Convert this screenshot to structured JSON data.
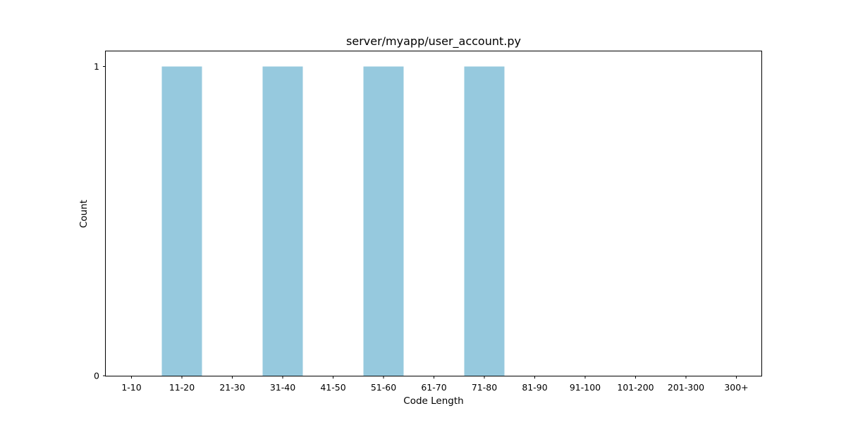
{
  "chart_data": {
    "type": "bar",
    "title": "server/myapp/user_account.py",
    "xlabel": "Code Length",
    "ylabel": "Count",
    "categories": [
      "1-10",
      "11-20",
      "21-30",
      "31-40",
      "41-50",
      "51-60",
      "61-70",
      "71-80",
      "81-90",
      "91-100",
      "101-200",
      "201-300",
      "300+"
    ],
    "values": [
      0,
      1,
      0,
      1,
      0,
      1,
      0,
      1,
      0,
      0,
      0,
      0,
      0
    ],
    "ylim": [
      0,
      1
    ],
    "yticks": [
      0,
      1
    ],
    "grid": false,
    "bar_color": "#96c9de"
  }
}
